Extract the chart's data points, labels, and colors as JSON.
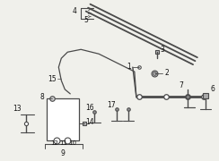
{
  "bg_color": "#f0f0eb",
  "line_color": "#4a4a4a",
  "label_color": "#111111",
  "fig_w": 2.44,
  "fig_h": 1.8,
  "dpi": 100
}
